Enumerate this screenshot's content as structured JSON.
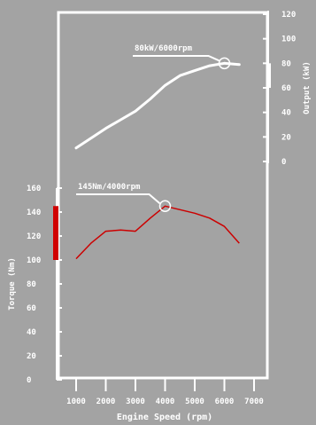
{
  "chart_data": [
    {
      "type": "line",
      "ylabel": "Output (kW)",
      "ylim": [
        0,
        120
      ],
      "yticks": [
        "0",
        "20",
        "40",
        "60",
        "80",
        "100",
        "120"
      ],
      "series": [
        {
          "color": "#ffffff",
          "x": [
            1000,
            1500,
            2000,
            2500,
            3000,
            3500,
            4000,
            4500,
            5000,
            5500,
            6000,
            6500
          ],
          "values": [
            11,
            19,
            27,
            34,
            41,
            51,
            62,
            70,
            74,
            78,
            80,
            79
          ]
        }
      ],
      "annotation": {
        "text": "80kW/6000rpm",
        "x": 6000,
        "y": 80
      }
    },
    {
      "type": "line",
      "ylabel": "Torque (Nm)",
      "xlabel": "Engine Speed (rpm)",
      "ylim": [
        0,
        160
      ],
      "xlim": [
        1000,
        7000
      ],
      "yticks": [
        "0",
        "20",
        "40",
        "60",
        "80",
        "100",
        "120",
        "140",
        "160"
      ],
      "xticks": [
        "1000",
        "2000",
        "3000",
        "4000",
        "5000",
        "6000",
        "7000"
      ],
      "series": [
        {
          "color": "#cc0000",
          "x": [
            1000,
            1500,
            2000,
            2500,
            3000,
            3500,
            4000,
            4500,
            5000,
            5500,
            6000,
            6500
          ],
          "values": [
            101,
            114,
            124,
            125,
            124,
            135,
            145,
            142,
            139,
            135,
            128,
            114
          ]
        }
      ],
      "annotation": {
        "text": "145Nm/4000rpm",
        "x": 4000,
        "y": 145
      }
    }
  ],
  "colors": {
    "background": "#a3a3a3",
    "panel": "#a3a3a3",
    "output_line": "#ffffff",
    "torque_line": "#cc0000",
    "torque_marker_band": "#d00000"
  }
}
